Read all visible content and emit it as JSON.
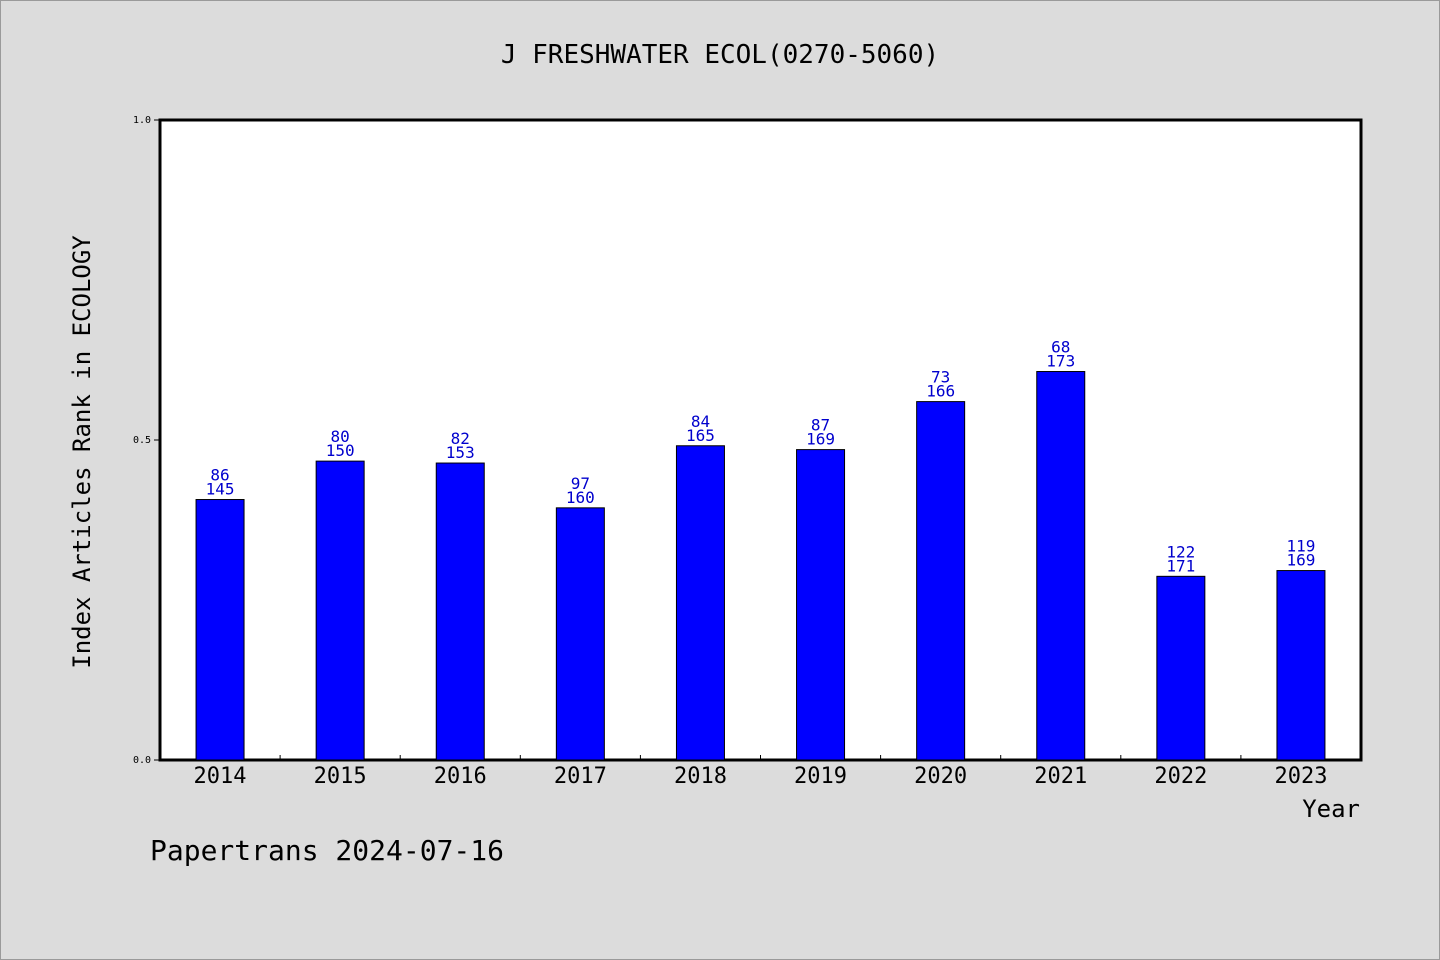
{
  "footer": {
    "note": "Papertrans 2024-07-16"
  },
  "chart_data": {
    "type": "bar",
    "title": "J FRESHWATER ECOL(0270-5060)",
    "xlabel": "Year",
    "ylabel": "Index Articles Rank in ECOLOGY",
    "ylim": [
      0,
      1.0
    ],
    "yticks": [
      "0.0",
      "0.5",
      "1.0"
    ],
    "grid": false,
    "bar_color": "#0000ff",
    "label_color": "#0000cd",
    "categories": [
      "2014",
      "2015",
      "2016",
      "2017",
      "2018",
      "2019",
      "2020",
      "2021",
      "2022",
      "2023"
    ],
    "values": [
      0.407,
      0.467,
      0.464,
      0.394,
      0.491,
      0.485,
      0.56,
      0.607,
      0.287,
      0.296
    ],
    "rank_labels": [
      "86",
      "80",
      "82",
      "97",
      "84",
      "87",
      "73",
      "68",
      "122",
      "119"
    ],
    "total_labels": [
      "145",
      "150",
      "153",
      "160",
      "165",
      "169",
      "166",
      "173",
      "171",
      "169"
    ]
  }
}
